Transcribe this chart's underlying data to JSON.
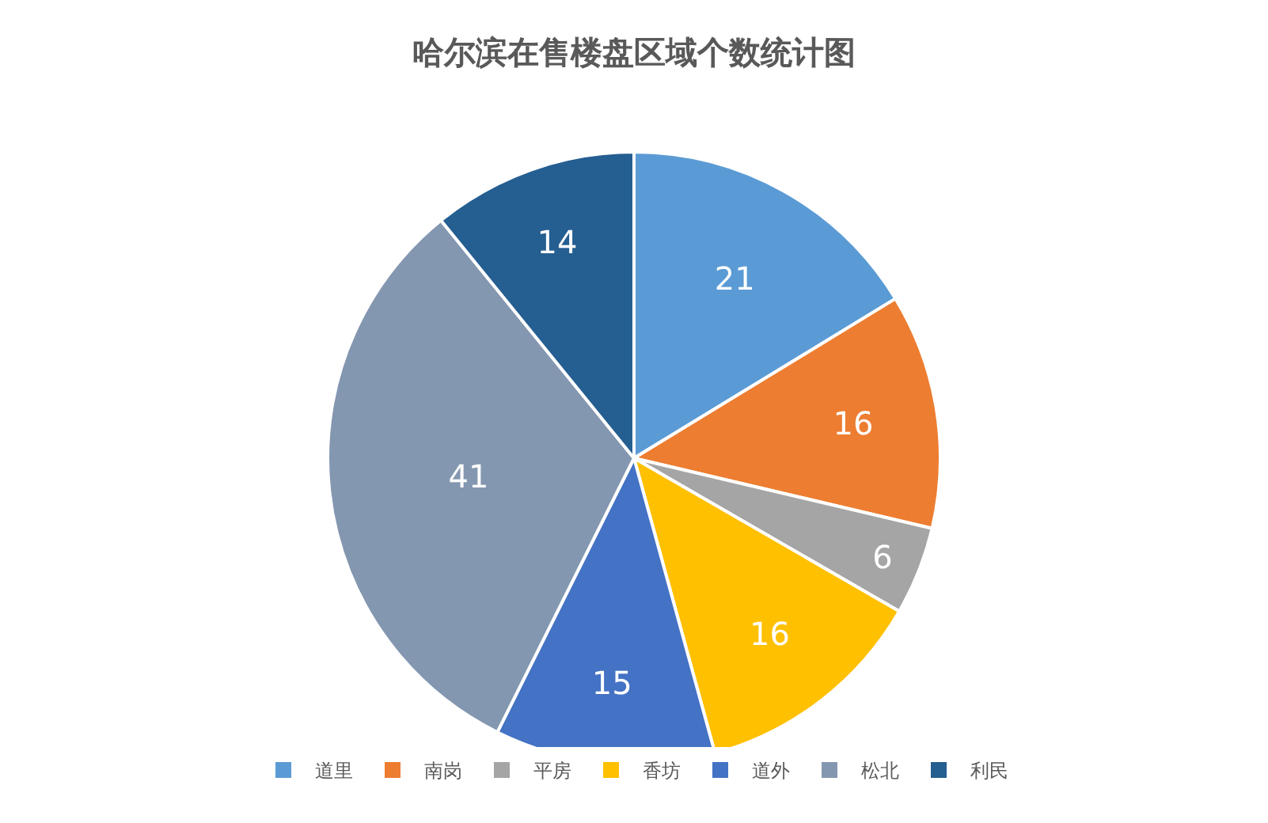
{
  "chart_data": {
    "type": "pie",
    "title": "哈尔滨在售楼盘区域个数统计图",
    "categories": [
      "道里",
      "南岗",
      "平房",
      "香坊",
      "道外",
      "松北",
      "利民"
    ],
    "values": [
      21,
      16,
      6,
      16,
      15,
      41,
      14
    ],
    "colors": [
      "#5b9bd5",
      "#ed7d31",
      "#a5a5a5",
      "#ffc000",
      "#4472c4",
      "#8497b0",
      "#255e91"
    ],
    "data_labels": true,
    "legend": "bottom"
  }
}
